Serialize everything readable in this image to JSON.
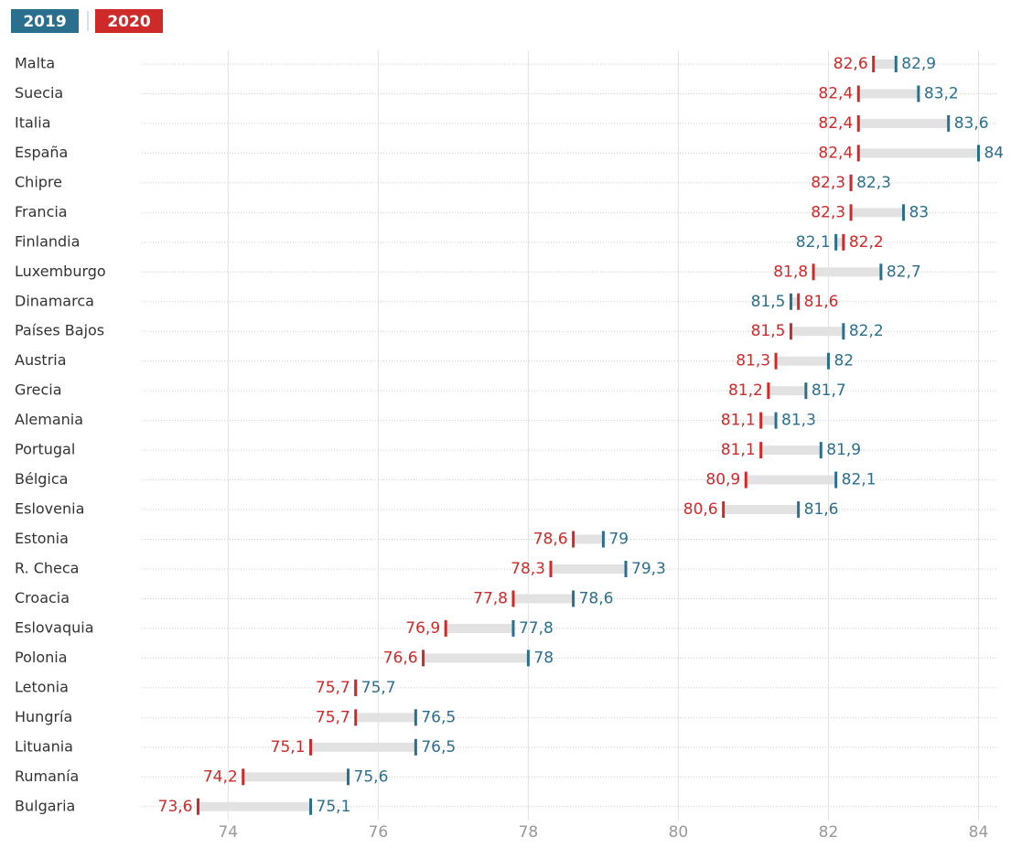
{
  "chart_data": {
    "type": "dumbbell",
    "categories": [
      "Malta",
      "Suecia",
      "Italia",
      "España",
      "Chipre",
      "Francia",
      "Finlandia",
      "Luxemburgo",
      "Dinamarca",
      "Países Bajos",
      "Austria",
      "Grecia",
      "Alemania",
      "Portugal",
      "Bélgica",
      "Eslovenia",
      "Estonia",
      "R. Checa",
      "Croacia",
      "Eslovaquia",
      "Polonia",
      "Letonia",
      "Hungría",
      "Lituania",
      "Rumanía",
      "Bulgaria"
    ],
    "series": [
      {
        "name": "2019",
        "color": "#2b6f8e",
        "values": [
          82.9,
          83.2,
          83.6,
          84,
          82.3,
          83,
          82.1,
          82.7,
          81.5,
          82.2,
          82,
          81.7,
          81.3,
          81.9,
          82.1,
          81.6,
          79,
          79.3,
          78.6,
          77.8,
          78,
          75.7,
          76.5,
          76.5,
          75.6,
          75.1
        ],
        "value_labels": [
          "82,9",
          "83,2",
          "83,6",
          "84",
          "82,3",
          "83",
          "82,1",
          "82,7",
          "81,5",
          "82,2",
          "82",
          "81,7",
          "81,3",
          "81,9",
          "82,1",
          "81,6",
          "79",
          "79,3",
          "78,6",
          "77,8",
          "78",
          "75,7",
          "76,5",
          "76,5",
          "75,6",
          "75,1"
        ]
      },
      {
        "name": "2020",
        "color": "#cf2a2a",
        "values": [
          82.6,
          82.4,
          82.4,
          82.4,
          82.3,
          82.3,
          82.2,
          81.8,
          81.6,
          81.5,
          81.3,
          81.2,
          81.1,
          81.1,
          80.9,
          80.6,
          78.6,
          78.3,
          77.8,
          76.9,
          76.6,
          75.7,
          75.7,
          75.1,
          74.2,
          73.6
        ],
        "value_labels": [
          "82,6",
          "82,4",
          "82,4",
          "82,4",
          "82,3",
          "82,3",
          "82,2",
          "81,8",
          "81,6",
          "81,5",
          "81,3",
          "81,2",
          "81,1",
          "81,1",
          "80,9",
          "80,6",
          "78,6",
          "78,3",
          "77,8",
          "76,9",
          "76,6",
          "75,7",
          "75,7",
          "75,1",
          "74,2",
          "73,6"
        ]
      }
    ],
    "xlim": [
      72.85,
      84.25
    ],
    "xticks": [
      74,
      76,
      78,
      80,
      82,
      84
    ],
    "grid": true
  }
}
